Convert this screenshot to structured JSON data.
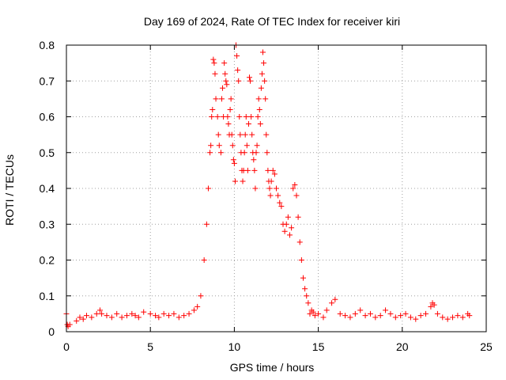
{
  "chart_data": {
    "type": "scatter",
    "title": "Day 169 of 2024, Rate Of TEC Index for receiver kiri",
    "xlabel": "GPS time / hours",
    "ylabel": "ROTI / TECUs",
    "xlim": [
      0,
      25
    ],
    "ylim": [
      0,
      0.8
    ],
    "x_ticks": [
      "0",
      "5",
      "10",
      "15",
      "20",
      "25"
    ],
    "y_ticks": [
      "0",
      "0.1",
      "0.2",
      "0.3",
      "0.4",
      "0.5",
      "0.6",
      "0.7",
      "0.8"
    ],
    "grid": true,
    "legend": "none",
    "marker": "plus",
    "color": "#ff0000",
    "series": [
      {
        "x": [
          0.0,
          0.05,
          0.1,
          0.2,
          0.6,
          0.8,
          1.0,
          1.2,
          1.5,
          1.8,
          2.0,
          2.1,
          2.4,
          2.7,
          3.0,
          3.3,
          3.6,
          3.9,
          4.1,
          4.3,
          4.6,
          5.0,
          5.3,
          5.5,
          5.8,
          6.1,
          6.4,
          6.7,
          7.0,
          7.3,
          7.6,
          7.8,
          8.0,
          8.2,
          8.35,
          8.45,
          8.55,
          8.6,
          8.65,
          8.7,
          8.75,
          8.8,
          8.85,
          8.9,
          9.0,
          9.05,
          9.1,
          9.2,
          9.25,
          9.3,
          9.35,
          9.4,
          9.45,
          9.5,
          9.55,
          9.6,
          9.65,
          9.7,
          9.75,
          9.8,
          9.85,
          9.9,
          9.95,
          10.0,
          10.05,
          10.1,
          10.15,
          10.2,
          10.25,
          10.3,
          10.35,
          10.4,
          10.45,
          10.5,
          10.55,
          10.6,
          10.65,
          10.7,
          10.75,
          10.8,
          10.85,
          10.9,
          10.95,
          11.0,
          11.05,
          11.1,
          11.15,
          11.2,
          11.25,
          11.3,
          11.35,
          11.4,
          11.45,
          11.5,
          11.55,
          11.6,
          11.65,
          11.7,
          11.75,
          11.8,
          11.85,
          11.9,
          11.95,
          12.0,
          12.05,
          12.1,
          12.15,
          12.2,
          12.3,
          12.4,
          12.5,
          12.6,
          12.7,
          12.8,
          12.9,
          13.0,
          13.1,
          13.2,
          13.3,
          13.4,
          13.5,
          13.6,
          13.7,
          13.8,
          13.9,
          14.0,
          14.1,
          14.2,
          14.3,
          14.4,
          14.5,
          14.6,
          14.7,
          14.8,
          15.0,
          15.3,
          15.5,
          15.8,
          16.0,
          16.3,
          16.6,
          16.9,
          17.2,
          17.5,
          17.8,
          18.1,
          18.4,
          18.7,
          19.0,
          19.3,
          19.6,
          19.9,
          20.2,
          20.5,
          20.8,
          21.1,
          21.4,
          21.7,
          21.8,
          21.9,
          22.1,
          22.4,
          22.7,
          23.0,
          23.3,
          23.6,
          23.9,
          24.0
        ],
        "y": [
          0.05,
          0.02,
          0.015,
          0.02,
          0.03,
          0.04,
          0.035,
          0.045,
          0.04,
          0.05,
          0.06,
          0.05,
          0.045,
          0.04,
          0.05,
          0.04,
          0.045,
          0.05,
          0.045,
          0.04,
          0.055,
          0.05,
          0.045,
          0.04,
          0.05,
          0.045,
          0.05,
          0.04,
          0.045,
          0.05,
          0.06,
          0.07,
          0.1,
          0.2,
          0.3,
          0.4,
          0.5,
          0.52,
          0.6,
          0.62,
          0.76,
          0.75,
          0.72,
          0.65,
          0.6,
          0.55,
          0.52,
          0.5,
          0.65,
          0.68,
          0.6,
          0.75,
          0.72,
          0.7,
          0.69,
          0.6,
          0.58,
          0.55,
          0.62,
          0.65,
          0.55,
          0.52,
          0.48,
          0.47,
          0.42,
          0.8,
          0.77,
          0.73,
          0.7,
          0.6,
          0.55,
          0.5,
          0.45,
          0.42,
          0.45,
          0.5,
          0.55,
          0.6,
          0.52,
          0.45,
          0.58,
          0.71,
          0.7,
          0.6,
          0.55,
          0.5,
          0.48,
          0.45,
          0.4,
          0.5,
          0.52,
          0.6,
          0.65,
          0.62,
          0.58,
          0.68,
          0.72,
          0.78,
          0.75,
          0.7,
          0.65,
          0.55,
          0.5,
          0.45,
          0.42,
          0.4,
          0.38,
          0.42,
          0.45,
          0.44,
          0.4,
          0.38,
          0.36,
          0.35,
          0.3,
          0.28,
          0.3,
          0.32,
          0.27,
          0.29,
          0.4,
          0.41,
          0.38,
          0.32,
          0.25,
          0.2,
          0.15,
          0.12,
          0.1,
          0.08,
          0.05,
          0.06,
          0.055,
          0.045,
          0.05,
          0.04,
          0.06,
          0.08,
          0.09,
          0.05,
          0.045,
          0.04,
          0.05,
          0.06,
          0.045,
          0.05,
          0.04,
          0.045,
          0.06,
          0.05,
          0.04,
          0.045,
          0.05,
          0.04,
          0.035,
          0.045,
          0.05,
          0.07,
          0.08,
          0.075,
          0.05,
          0.04,
          0.035,
          0.04,
          0.045,
          0.04,
          0.05,
          0.045
        ]
      }
    ]
  }
}
